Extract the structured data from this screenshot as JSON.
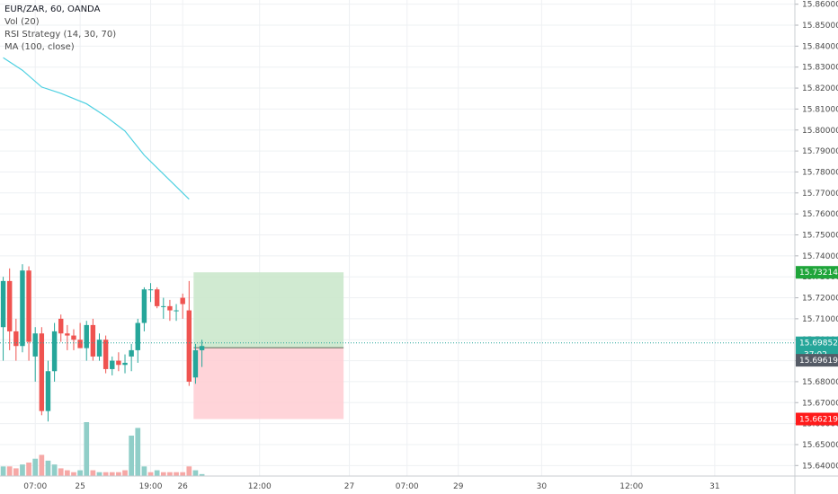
{
  "legend": {
    "symbol": "EUR/ZAR, 60, OANDA",
    "volume": "Vol (20)",
    "strategy": "RSI Strategy (14, 30, 70)",
    "ma": "MA (100, close)"
  },
  "colors": {
    "up": "#26a69a",
    "down": "#ef5350",
    "up_volume": "#90cec8",
    "down_volume": "#f6a8a6",
    "ma": "#4dd0e1",
    "grid": "#eef0f3",
    "profit_zone": "#c8e6c9",
    "loss_zone": "#ffcdd2",
    "current_price": "#26a69a",
    "target_badge": "#1fa53a",
    "stop_badge": "#ff1b1b",
    "entry_badge": "#555b66"
  },
  "chart_data": {
    "type": "candlestick",
    "symbol": "EUR/ZAR",
    "timeframe": "60",
    "y_range": [
      15.635,
      15.862
    ],
    "y_ticks": [
      "15.86000",
      "15.85000",
      "15.84000",
      "15.83000",
      "15.82000",
      "15.81000",
      "15.80000",
      "15.79000",
      "15.78000",
      "15.77000",
      "15.76000",
      "15.75000",
      "15.74000",
      "15.73000",
      "15.72000",
      "15.71000",
      "15.70000",
      "15.69000",
      "15.68000",
      "15.67000",
      "15.66000",
      "15.65000",
      "15.64000"
    ],
    "x_ticks": [
      {
        "label": "07:00",
        "bar": 5
      },
      {
        "label": "25",
        "bar": 12
      },
      {
        "label": "19:00",
        "bar": 23
      },
      {
        "label": "26",
        "bar": 28
      },
      {
        "label": "12:00",
        "bar": 40
      },
      {
        "label": "27",
        "bar": 54
      },
      {
        "label": "07:00",
        "bar": 63
      },
      {
        "label": "29",
        "bar": 71
      },
      {
        "label": "30",
        "bar": 84
      },
      {
        "label": "12:00",
        "bar": 98
      },
      {
        "label": "31",
        "bar": 111
      }
    ],
    "bar_count_visible": 124,
    "candles": [
      {
        "o": 15.706,
        "h": 15.73,
        "l": 15.69,
        "c": 15.728
      },
      {
        "o": 15.728,
        "h": 15.734,
        "l": 15.695,
        "c": 15.704
      },
      {
        "o": 15.704,
        "h": 15.71,
        "l": 15.69,
        "c": 15.697
      },
      {
        "o": 15.697,
        "h": 15.736,
        "l": 15.694,
        "c": 15.733
      },
      {
        "o": 15.733,
        "h": 15.735,
        "l": 15.69,
        "c": 15.699
      },
      {
        "o": 15.692,
        "h": 15.706,
        "l": 15.68,
        "c": 15.703
      },
      {
        "o": 15.703,
        "h": 15.706,
        "l": 15.664,
        "c": 15.666
      },
      {
        "o": 15.666,
        "h": 15.69,
        "l": 15.661,
        "c": 15.685
      },
      {
        "o": 15.685,
        "h": 15.708,
        "l": 15.68,
        "c": 15.704
      },
      {
        "o": 15.71,
        "h": 15.712,
        "l": 15.699,
        "c": 15.703
      },
      {
        "o": 15.703,
        "h": 15.707,
        "l": 15.695,
        "c": 15.702
      },
      {
        "o": 15.702,
        "h": 15.705,
        "l": 15.695,
        "c": 15.7
      },
      {
        "o": 15.7,
        "h": 15.708,
        "l": 15.696,
        "c": 15.696
      },
      {
        "o": 15.696,
        "h": 15.709,
        "l": 15.69,
        "c": 15.707
      },
      {
        "o": 15.707,
        "h": 15.71,
        "l": 15.69,
        "c": 15.692
      },
      {
        "o": 15.692,
        "h": 15.703,
        "l": 15.69,
        "c": 15.7
      },
      {
        "o": 15.7,
        "h": 15.702,
        "l": 15.684,
        "c": 15.686
      },
      {
        "o": 15.686,
        "h": 15.692,
        "l": 15.683,
        "c": 15.69
      },
      {
        "o": 15.69,
        "h": 15.694,
        "l": 15.685,
        "c": 15.688
      },
      {
        "o": 15.688,
        "h": 15.693,
        "l": 15.684,
        "c": 15.689
      },
      {
        "o": 15.692,
        "h": 15.698,
        "l": 15.685,
        "c": 15.695
      },
      {
        "o": 15.695,
        "h": 15.71,
        "l": 15.689,
        "c": 15.708
      },
      {
        "o": 15.708,
        "h": 15.725,
        "l": 15.704,
        "c": 15.724
      },
      {
        "o": 15.724,
        "h": 15.727,
        "l": 15.718,
        "c": 15.724
      },
      {
        "o": 15.724,
        "h": 15.725,
        "l": 15.715,
        "c": 15.716
      },
      {
        "o": 15.716,
        "h": 15.72,
        "l": 15.71,
        "c": 15.716
      },
      {
        "o": 15.716,
        "h": 15.719,
        "l": 15.709,
        "c": 15.714
      },
      {
        "o": 15.714,
        "h": 15.717,
        "l": 15.709,
        "c": 15.714
      },
      {
        "o": 15.72,
        "h": 15.722,
        "l": 15.71,
        "c": 15.717
      },
      {
        "o": 15.714,
        "h": 15.728,
        "l": 15.678,
        "c": 15.68
      },
      {
        "o": 15.682,
        "h": 15.698,
        "l": 15.679,
        "c": 15.695
      },
      {
        "o": 15.695,
        "h": 15.7,
        "l": 15.687,
        "c": 15.697
      }
    ],
    "volume": [
      {
        "v": 5,
        "dir": "up"
      },
      {
        "v": 5,
        "dir": "down"
      },
      {
        "v": 4,
        "dir": "down"
      },
      {
        "v": 6,
        "dir": "up"
      },
      {
        "v": 7,
        "dir": "down"
      },
      {
        "v": 9,
        "dir": "up"
      },
      {
        "v": 11,
        "dir": "down"
      },
      {
        "v": 8,
        "dir": "up"
      },
      {
        "v": 6,
        "dir": "up"
      },
      {
        "v": 4,
        "dir": "down"
      },
      {
        "v": 3,
        "dir": "down"
      },
      {
        "v": 2,
        "dir": "down"
      },
      {
        "v": 3,
        "dir": "up"
      },
      {
        "v": 28,
        "dir": "up"
      },
      {
        "v": 3,
        "dir": "down"
      },
      {
        "v": 2,
        "dir": "up"
      },
      {
        "v": 2,
        "dir": "down"
      },
      {
        "v": 2,
        "dir": "down"
      },
      {
        "v": 2,
        "dir": "down"
      },
      {
        "v": 3,
        "dir": "down"
      },
      {
        "v": 21,
        "dir": "up"
      },
      {
        "v": 25,
        "dir": "up"
      },
      {
        "v": 5,
        "dir": "up"
      },
      {
        "v": 2,
        "dir": "down"
      },
      {
        "v": 3,
        "dir": "up"
      },
      {
        "v": 2,
        "dir": "down"
      },
      {
        "v": 2,
        "dir": "down"
      },
      {
        "v": 2,
        "dir": "down"
      },
      {
        "v": 2,
        "dir": "down"
      },
      {
        "v": 5,
        "dir": "down"
      },
      {
        "v": 3,
        "dir": "up"
      },
      {
        "v": 1,
        "dir": "up"
      }
    ],
    "ma": [
      {
        "bar": 0,
        "value": 15.8345
      },
      {
        "bar": 3,
        "value": 15.8285
      },
      {
        "bar": 6,
        "value": 15.8205
      },
      {
        "bar": 9,
        "value": 15.8175
      },
      {
        "bar": 13,
        "value": 15.8125
      },
      {
        "bar": 16,
        "value": 15.8065
      },
      {
        "bar": 19,
        "value": 15.7995
      },
      {
        "bar": 22,
        "value": 15.788
      },
      {
        "bar": 25,
        "value": 15.779
      },
      {
        "bar": 27,
        "value": 15.773
      },
      {
        "bar": 29,
        "value": 15.767
      }
    ],
    "position": {
      "start_bar": 29.7,
      "end_bar": 53.1,
      "entry": 15.6962,
      "target": 15.73214,
      "stop": 15.66219
    },
    "current_price": 15.69852,
    "price_labels": {
      "target": "15.73214",
      "current": "15.69852",
      "countdown": "37:02",
      "entry": "15.69619",
      "stop": "15.66219"
    }
  }
}
